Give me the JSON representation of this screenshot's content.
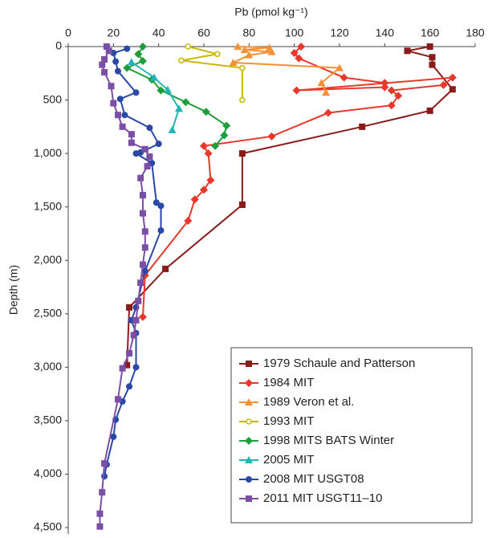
{
  "chart_data": {
    "type": "line",
    "x_label": "Pb (pmol kg⁻¹)",
    "y_label": "Depth (m)",
    "xlim": [
      0,
      180
    ],
    "xticks": [
      0,
      20,
      40,
      60,
      80,
      100,
      120,
      140,
      160,
      180
    ],
    "ylim": [
      0,
      4560
    ],
    "y_inverted": true,
    "yticks": [
      0,
      500,
      {
        "value": 1000,
        "label": "1,000"
      },
      {
        "value": 1500,
        "label": "1,500"
      },
      {
        "value": 2000,
        "label": "2,000"
      },
      {
        "value": 2500,
        "label": "2,500"
      },
      {
        "value": 3000,
        "label": "3,000"
      },
      {
        "value": 3500,
        "label": "3,500"
      },
      {
        "value": 4000,
        "label": "4,000"
      },
      {
        "value": 4500,
        "label": "4,500"
      }
    ],
    "legend": "bottom-right",
    "series": [
      {
        "name": "1979 Schaule and Patterson",
        "color": "#8b1a1a",
        "marker": "square",
        "x": [
          160,
          150,
          161,
          161,
          170,
          160,
          130,
          77,
          77,
          43,
          27,
          26
        ],
        "y": [
          0,
          40,
          100,
          170,
          400,
          600,
          750,
          1000,
          1480,
          2080,
          2440,
          2980
        ]
      },
      {
        "name": "1984 MIT",
        "color": "#e8382b",
        "marker": "diamond",
        "x": [
          103,
          100,
          102,
          122,
          140,
          140,
          101,
          170,
          166,
          143,
          146,
          143,
          115,
          90,
          60,
          62,
          63,
          60,
          56,
          53,
          34,
          33
        ],
        "y": [
          0,
          60,
          110,
          290,
          340,
          380,
          410,
          290,
          360,
          410,
          460,
          550,
          620,
          840,
          930,
          1000,
          1250,
          1340,
          1430,
          1630,
          2140,
          2530
        ]
      },
      {
        "name": "1989 Veron et al.",
        "color": "#f39237",
        "marker": "triangle",
        "x": [
          75,
          89,
          78,
          90,
          80,
          73,
          120,
          112,
          114
        ],
        "y": [
          0,
          10,
          30,
          50,
          80,
          150,
          200,
          340,
          430
        ]
      },
      {
        "name": "1993 MIT",
        "color": "#c9b800",
        "marker": "open-circle",
        "x": [
          53,
          66,
          50,
          77,
          77
        ],
        "y": [
          0,
          70,
          130,
          200,
          500
        ]
      },
      {
        "name": "1998 MITS BATS Winter",
        "color": "#1e9e3b",
        "marker": "diamond",
        "x": [
          33,
          31,
          33,
          26,
          37,
          41,
          52,
          61,
          70,
          69,
          65
        ],
        "y": [
          0,
          70,
          135,
          200,
          310,
          410,
          520,
          610,
          740,
          830,
          930
        ]
      },
      {
        "name": "2005 MIT",
        "color": "#23b5b5",
        "marker": "triangle",
        "x": [
          28,
          38,
          44,
          49,
          46
        ],
        "y": [
          145,
          290,
          405,
          580,
          780
        ]
      },
      {
        "name": "2008 MIT USGT08",
        "color": "#2948a7",
        "marker": "circle",
        "x": [
          26,
          20,
          21,
          22,
          30,
          23,
          25,
          36,
          40,
          32,
          30,
          37,
          39,
          41,
          41,
          34,
          30,
          28,
          30,
          30,
          27,
          24,
          21,
          20,
          17,
          16
        ],
        "y": [
          20,
          60,
          140,
          230,
          430,
          490,
          640,
          760,
          910,
          990,
          1000,
          1090,
          1460,
          1490,
          1720,
          2100,
          2440,
          2560,
          2680,
          3000,
          3180,
          3320,
          3490,
          3650,
          3910,
          4020
        ]
      },
      {
        "name": "2011 MIT USGT11–10",
        "color": "#7a4fa5",
        "marker": "square",
        "x": [
          17,
          18,
          16,
          15,
          16,
          19,
          20,
          22,
          24,
          28,
          28,
          34,
          36,
          35,
          32,
          33,
          33,
          34,
          34,
          33,
          32,
          31,
          30,
          29,
          27,
          24,
          22,
          16,
          15,
          14,
          14
        ],
        "y": [
          0,
          40,
          120,
          170,
          240,
          370,
          530,
          640,
          750,
          820,
          900,
          960,
          1030,
          1120,
          1230,
          1390,
          1560,
          1730,
          1880,
          2040,
          2210,
          2380,
          2560,
          2700,
          2870,
          3010,
          3300,
          3900,
          4170,
          4370,
          4490
        ]
      }
    ]
  }
}
